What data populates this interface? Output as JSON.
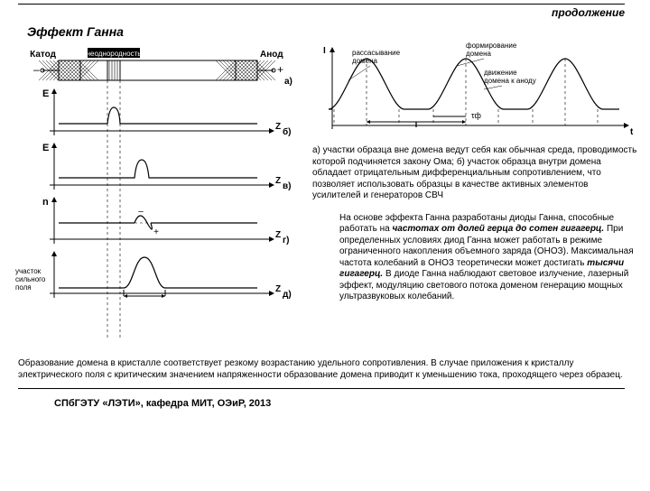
{
  "header": {
    "continuation": "продолжение",
    "title": "Эффект Ганна"
  },
  "left_diagram": {
    "cathode": "Катод",
    "inhomogeneity": "неоднородность",
    "anode": "Анод",
    "row_labels": [
      "а)",
      "б)",
      "в)",
      "г)",
      "д)"
    ],
    "y_labels": [
      "E",
      "E",
      "n",
      ""
    ],
    "x_label": "Z",
    "strong_field": "участок\nсильного\nполя"
  },
  "right_diagram": {
    "y_axis": "I",
    "x_axis": "t",
    "period": "T",
    "tau": "τф",
    "label_dissipate": "рассасывание\nдомена",
    "label_form": "формирование\nдомена",
    "label_move": "движение\nдомена к аноду"
  },
  "paragraphs": {
    "p1": "а) участки образца вне домена ведут себя как обычная среда, проводимость которой подчиняется закону Ома; б) участок образца внутри домена обладает отрицательным дифференциальным\nсопротивлением, что позволяет использовать образцы в качестве активных элементов усилителей и генераторов СВЧ",
    "p2_a": "На основе эффекта Ганна разработаны диоды Ганна, способные работать на ",
    "p2_b": "частотах от долей герца до сотен гигагерц.",
    "p2_c": " При определенных условиях диод Ганна может работать в режиме ограниченного накопления объемного заряда (ОНОЗ). Максимальная частота колебаний в ОНОЗ теоретически может достигать ",
    "p2_d": "тысячи гигагерц.",
    "p2_e": " В диоде Ганна наблюдают световое излучение, лазерный эффект, модуляцию светового потока доменом генерацию мощных ультразвуковых колебаний.",
    "bottom": "Образование домена в кристалле соответствует резкому возрастанию удельного сопротивления.\nВ случае приложения к кристаллу электрического поля с критическим значением напряженности образование домена приводит к уменьшению тока, проходящего  через образец."
  },
  "footer": "СПбГЭТУ «ЛЭТИ», кафедра МИТ, ОЭиР, 2013"
}
